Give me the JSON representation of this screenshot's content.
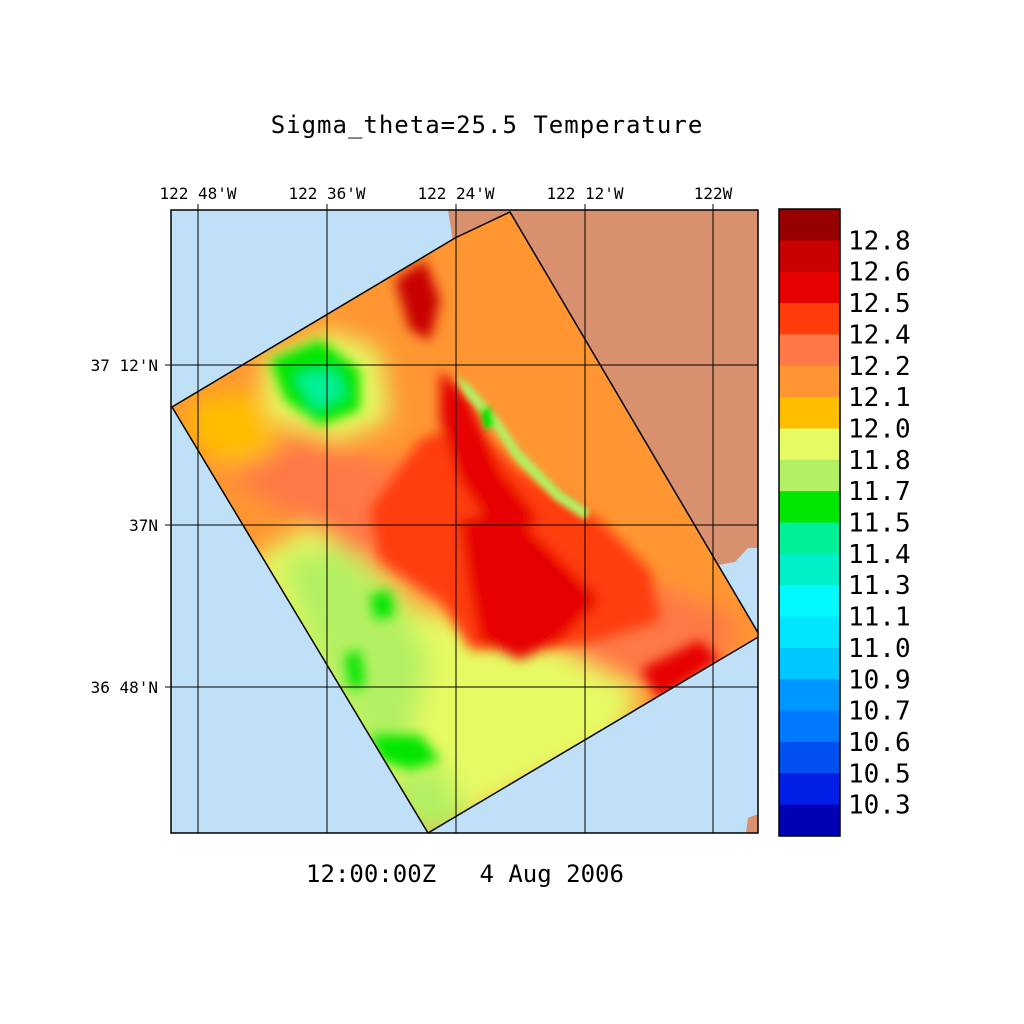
{
  "title": "Sigma_theta=25.5 Temperature",
  "timestamp": "12:00:00Z   4 Aug 2006",
  "map": {
    "longitude_labels": [
      "122 48'W",
      "122 36'W",
      "122 24'W",
      "122 12'W",
      "122W"
    ],
    "latitude_labels": [
      "37 12'N",
      "37N",
      "36 48'N"
    ],
    "colors": {
      "ocean": "#c0e0f8",
      "land": "#d9906e",
      "grid": "#000000"
    }
  },
  "colorbar": {
    "labels": [
      "12.8",
      "12.6",
      "12.5",
      "12.4",
      "12.2",
      "12.1",
      "12.0",
      "11.8",
      "11.7",
      "11.5",
      "11.4",
      "11.3",
      "11.1",
      "11.0",
      "10.9",
      "10.7",
      "10.6",
      "10.5",
      "10.3"
    ],
    "colors_top_to_bottom": [
      "#960000",
      "#c80000",
      "#e60000",
      "#ff3c0a",
      "#ff7846",
      "#ff9632",
      "#ffbe00",
      "#e6fa64",
      "#b4f064",
      "#00e600",
      "#00f096",
      "#00f0c8",
      "#00faff",
      "#00e6ff",
      "#00c8ff",
      "#0096ff",
      "#0078ff",
      "#0050f0",
      "#001ee6",
      "#0000b4"
    ]
  }
}
